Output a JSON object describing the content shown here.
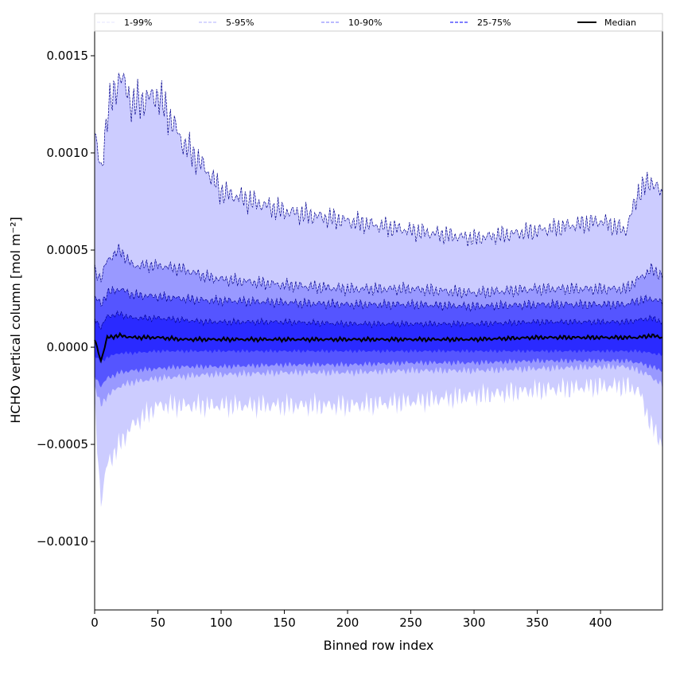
{
  "chart_data": {
    "type": "area",
    "title": "",
    "xlabel": "Binned row index",
    "ylabel": "HCHO vertical column [mol m⁻²]",
    "xlim": [
      0,
      449
    ],
    "ylim": [
      -0.001352,
      0.001627
    ],
    "xticks": [
      0,
      50,
      100,
      150,
      200,
      250,
      300,
      350,
      400
    ],
    "xtick_labels": [
      "0",
      "50",
      "100",
      "150",
      "200",
      "250",
      "300",
      "350",
      "400"
    ],
    "yticks": [
      -0.001,
      -0.0005,
      0,
      0.0005,
      0.001,
      0.0015
    ],
    "ytick_labels": [
      "−0.0010",
      "−0.0005",
      "0.0000",
      "0.0005",
      "0.0010",
      "0.0015"
    ],
    "legend_position": "top (above plot, horizontal)",
    "x": [
      0,
      5,
      10,
      20,
      30,
      50,
      70,
      90,
      100,
      150,
      200,
      250,
      300,
      350,
      400,
      420,
      430,
      440,
      449
    ],
    "series": [
      {
        "name": "1-99%",
        "color": "#ccccff",
        "upper": [
          0.0011,
          0.0009,
          0.0012,
          0.0014,
          0.00125,
          0.0013,
          0.00105,
          0.0009,
          0.0008,
          0.0007,
          0.00065,
          0.0006,
          0.00056,
          0.0006,
          0.00065,
          0.0006,
          0.0008,
          0.00086,
          0.00078
        ],
        "lower": [
          -0.0003,
          -0.0008,
          -0.0006,
          -0.0005,
          -0.0004,
          -0.0003,
          -0.0003,
          -0.0003,
          -0.0003,
          -0.0003,
          -0.0003,
          -0.00028,
          -0.00025,
          -0.00022,
          -0.0002,
          -0.0002,
          -0.00022,
          -0.0004,
          -0.0005
        ]
      },
      {
        "name": "5-95%",
        "color": "#9999ff",
        "upper": [
          0.0004,
          0.00035,
          0.00045,
          0.0005,
          0.00042,
          0.00042,
          0.0004,
          0.00036,
          0.00035,
          0.00032,
          0.0003,
          0.0003,
          0.00028,
          0.0003,
          0.0003,
          0.0003,
          0.00035,
          0.0004,
          0.00037
        ],
        "lower": [
          -0.0002,
          -0.0003,
          -0.00025,
          -0.0002,
          -0.00018,
          -0.00016,
          -0.00015,
          -0.00014,
          -0.00014,
          -0.00013,
          -0.00013,
          -0.00012,
          -0.00012,
          -0.00011,
          -0.0001,
          -0.0001,
          -0.00012,
          -0.00015,
          -0.0002
        ]
      },
      {
        "name": "10-90%",
        "color": "#5555ff",
        "upper": [
          0.00026,
          0.00022,
          0.00028,
          0.0003,
          0.00027,
          0.00026,
          0.00025,
          0.00024,
          0.00024,
          0.00023,
          0.00022,
          0.00022,
          0.00021,
          0.00022,
          0.00022,
          0.00022,
          0.00024,
          0.00025,
          0.00023
        ],
        "lower": [
          -0.00015,
          -0.0002,
          -0.00016,
          -0.00013,
          -0.00012,
          -0.00011,
          -0.0001,
          -0.0001,
          -0.0001,
          -9e-05,
          -9e-05,
          -8e-05,
          -8e-05,
          -7e-05,
          -7e-05,
          -7e-05,
          -8e-05,
          -0.0001,
          -0.00012
        ]
      },
      {
        "name": "25-75%",
        "color": "#2a2aff",
        "upper": [
          0.00015,
          0.0001,
          0.00016,
          0.00017,
          0.00015,
          0.00015,
          0.00014,
          0.00013,
          0.00013,
          0.00013,
          0.00012,
          0.00012,
          0.00012,
          0.00013,
          0.00013,
          0.00013,
          0.00014,
          0.00015,
          0.00013
        ],
        "lower": [
          -4e-05,
          -8e-05,
          -5e-05,
          -3e-05,
          -3e-05,
          -2e-05,
          -2e-05,
          -2e-05,
          -2e-05,
          -2e-05,
          -2e-05,
          -2e-05,
          -2e-05,
          -2e-05,
          -2e-05,
          -2e-05,
          -2e-05,
          -3e-05,
          -4e-05
        ]
      }
    ],
    "median": {
      "name": "Median",
      "color": "#000000",
      "values": [
        4e-05,
        -7e-05,
        5e-05,
        6e-05,
        5e-05,
        5e-05,
        4e-05,
        4e-05,
        4e-05,
        4e-05,
        4e-05,
        4e-05,
        4e-05,
        5e-05,
        5e-05,
        5e-05,
        5e-05,
        6e-05,
        5e-05
      ]
    }
  }
}
